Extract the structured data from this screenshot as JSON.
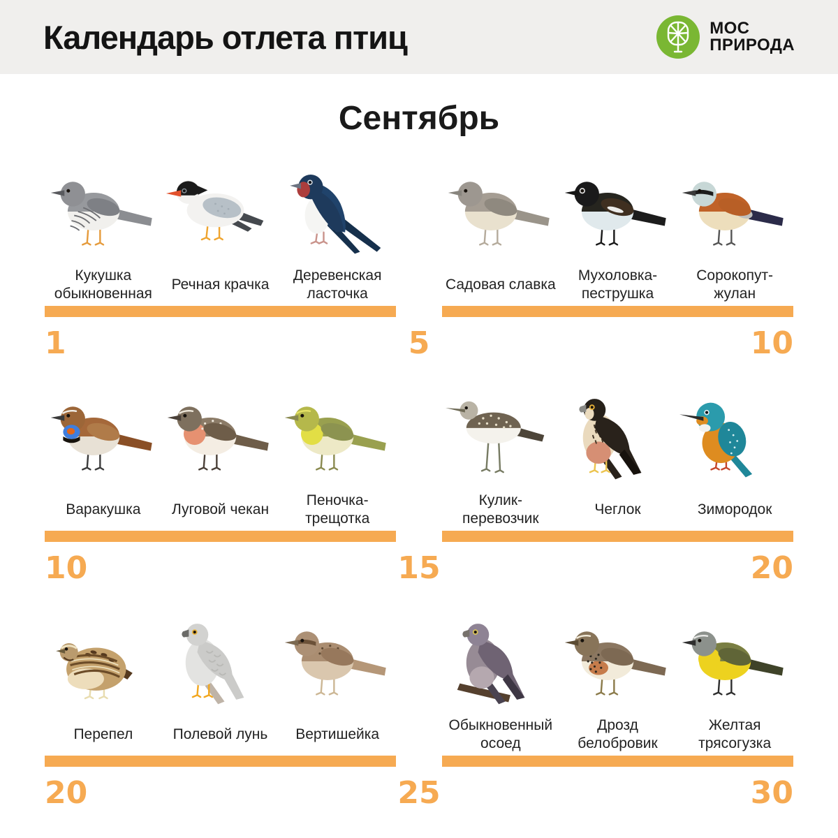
{
  "header": {
    "title": "Календарь отлета птиц",
    "logo_line1": "МОС",
    "logo_line2": "ПРИРОДА"
  },
  "month": "Сентябрь",
  "colors": {
    "accent_orange": "#F6AA52",
    "logo_green": "#7AB733",
    "header_bg": "#F0EFED",
    "text": "#1A1A1A"
  },
  "rows": [
    {
      "segment_labels": {
        "start": "1",
        "middle": "5",
        "end": "10"
      },
      "birds": [
        {
          "name": "Кукушка обыкновенная",
          "icon": "common-cuckoo-icon",
          "shape": "songbird",
          "palette": {
            "head": "#8F9094",
            "back": "#97999D",
            "wing": "#7E8085",
            "belly": "#F1F0ED",
            "tail": "#8B8D91",
            "beak": "#595A5E",
            "legs": "#E59B3C",
            "stripes": "#6E6F73"
          }
        },
        {
          "name": "Речная крачка",
          "icon": "common-tern-icon",
          "shape": "tern",
          "palette": {
            "head": "#F3F2F0",
            "cap": "#1B1B1B",
            "belly": "#F3F2F0",
            "wing": "#B7C0C7",
            "tail": "#45494E",
            "beak": "#E2512C",
            "legs": "#EFA42E"
          }
        },
        {
          "name": "Деревенская ласточка",
          "icon": "barn-swallow-icon",
          "shape": "swallow",
          "palette": {
            "head": "#1E3A5C",
            "body": "#20436B",
            "face": "#AC3D3C",
            "belly": "#F5F5F3",
            "tail": "#16304C",
            "beak": "#6B7280",
            "legs": "#C9938B"
          }
        },
        {
          "name": "Садовая славка",
          "icon": "garden-warbler-icon",
          "shape": "songbird",
          "palette": {
            "head": "#9D9790",
            "back": "#A59D93",
            "wing": "#8F897F",
            "belly": "#E9E1CE",
            "tail": "#9A948A",
            "beak": "#88857E",
            "legs": "#B5AB9C"
          }
        },
        {
          "name": "Мухоловка-пеструшка",
          "icon": "pied-flycatcher-icon",
          "shape": "songbird",
          "palette": {
            "head": "#1A1A1B",
            "back": "#26251F",
            "wing": "#3F2F20",
            "wingpatch": "#ECECEA",
            "belly": "#E0E9EC",
            "tail": "#1C1C1C",
            "beak": "#151515",
            "legs": "#1A1A1A",
            "eyering": "#E8E8E8"
          }
        },
        {
          "name": "Сорокопут-жулан",
          "icon": "red-backed-shrike-icon",
          "shape": "songbird",
          "palette": {
            "head": "#C7D7D6",
            "mask": "#1D1D1D",
            "back": "#C06228",
            "wing": "#B85F26",
            "wing2": "#BFBFBD",
            "belly": "#EDDEBC",
            "tail": "#2B2B49",
            "beak": "#3A3A3A",
            "legs": "#555555"
          }
        }
      ]
    },
    {
      "segment_labels": {
        "start": "10",
        "middle": "15",
        "end": "20"
      },
      "birds": [
        {
          "name": "Варакушка",
          "icon": "bluethroat-icon",
          "shape": "songbird",
          "palette": {
            "head": "#9C6638",
            "back": "#A5683A",
            "wing": "#B07B49",
            "belly": "#E8E1D5",
            "tail": "#8A4F26",
            "beak": "#3A3A3A",
            "legs": "#3C3C3C",
            "throat": "#3F7EDE",
            "throat2": "#E0661C",
            "band": "#17130D",
            "eyebrow": "#F2EFE8"
          }
        },
        {
          "name": "Луговой чекан",
          "icon": "whinchat-icon",
          "shape": "songbird",
          "palette": {
            "head": "#7E705E",
            "back": "#8B7B67",
            "wing": "#6E5D49",
            "belly": "#F4EDE3",
            "breast": "#E69171",
            "tail": "#6E5D49",
            "beak": "#4A4038",
            "legs": "#4A4038",
            "eyebrow": "#EFE8DB",
            "backSpeckles": "#EFE8DB"
          }
        },
        {
          "name": "Пеночка-трещотка",
          "icon": "wood-warbler-icon",
          "shape": "songbird",
          "palette": {
            "head": "#B5B84B",
            "back": "#99A04F",
            "wing": "#8C9350",
            "belly": "#EDE9C6",
            "breast": "#E2DE45",
            "tail": "#99A04F",
            "beak": "#8A8A50",
            "legs": "#8A8A50",
            "eyebrow": "#E6E365"
          }
        },
        {
          "name": "Кулик-перевозчик",
          "icon": "common-sandpiper-icon",
          "shape": "wader",
          "palette": {
            "head": "#B9B3A5",
            "back": "#6F6351",
            "belly": "#F4F2EC",
            "tail": "#4D4539",
            "beak": "#6E6A56",
            "legs": "#777B63",
            "backSpeckles": "#E7DFC9"
          }
        },
        {
          "name": "Чеглок",
          "icon": "hobby-falcon-icon",
          "shape": "raptor",
          "palette": {
            "head": "#262019",
            "cheek": "#ECDCBF",
            "wing": "#29221B",
            "dark": "#17120D",
            "breast": "#EADABE",
            "belly": "#D68F74",
            "tail": "#29221B",
            "beak": "#8A8A86",
            "legs": "#ECC44F",
            "speckles": "#4A3C2C",
            "eyering": "#E8B23A"
          }
        },
        {
          "name": "Зимородок",
          "icon": "kingfisher-icon",
          "shape": "kingfisher",
          "palette": {
            "head": "#2B9BAC",
            "wing": "#1F8799",
            "body": "#DE8C20",
            "throat": "#F4F2EE",
            "tail": "#1F8799",
            "beak": "#2B2B2B",
            "legs": "#C5472C"
          }
        }
      ]
    },
    {
      "segment_labels": {
        "start": "20",
        "middle": "25",
        "end": "30"
      },
      "birds": [
        {
          "name": "Перепел",
          "icon": "quail-icon",
          "shape": "quail",
          "palette": {
            "body": "#C4A16C",
            "head": "#BA9B6E",
            "belly": "#EDDDBB",
            "stripe": "#6C4C28",
            "dark": "#55391E",
            "headstripe": "#EFE3C2",
            "tail": "#55391E",
            "beak": "#6A5A3A",
            "legs": "#E8DCAF"
          }
        },
        {
          "name": "Полевой лунь",
          "icon": "hen-harrier-icon",
          "shape": "raptor",
          "palette": {
            "head": "#D2D2D0",
            "wing": "#CBCBC9",
            "breast": "#E3E3E1",
            "belly": "#E3E3E1",
            "tail": "#BFB4A8",
            "beak": "#6B6B68",
            "legs": "#F2A71F",
            "scallop": "#B9B9B6",
            "eyering": "#E8B23A"
          }
        },
        {
          "name": "Вертишейка",
          "icon": "wryneck-icon",
          "shape": "songbird",
          "palette": {
            "head": "#AC9075",
            "back": "#AA8D71",
            "wing": "#97785C",
            "belly": "#DAC7AE",
            "tail": "#B59778",
            "beak": "#7B6951",
            "legs": "#CCB795",
            "backSpeckles": "#5F4A34",
            "mask": "#6B5138"
          }
        },
        {
          "name": "Обыкновенный осоед",
          "icon": "honey-buzzard-icon",
          "shape": "raptor",
          "palette": {
            "head": "#8E8394",
            "wing": "#6F6373",
            "dark": "#3E3744",
            "breast": "#978B95",
            "belly": "#B5A8AF",
            "tail": "#4A4350",
            "beak": "#77726C",
            "legs": "#C9A15C",
            "branch": "#55402E",
            "eyering": "#D8C25A"
          }
        },
        {
          "name": "Дрозд белобровик",
          "icon": "redwing-icon",
          "shape": "songbird",
          "palette": {
            "head": "#887459",
            "back": "#8B7761",
            "wing": "#7D6953",
            "belly": "#F2EBDA",
            "tail": "#7D6953",
            "beak": "#5B4B33",
            "legs": "#8B7B4B",
            "speckles": "#2F2A22",
            "flank": "#C67C4B",
            "eyebrow": "#F2EBDA"
          }
        },
        {
          "name": "Желтая трясогузка",
          "icon": "yellow-wagtail-icon",
          "shape": "songbird",
          "palette": {
            "head": "#8C918C",
            "back": "#797E43",
            "wing": "#606537",
            "belly": "#EDD21F",
            "breast": "#EDD21F",
            "tail": "#3F4329",
            "beak": "#2E2E2E",
            "legs": "#2E2E2E",
            "eyebrow": "#E9E9E7"
          }
        }
      ]
    }
  ]
}
